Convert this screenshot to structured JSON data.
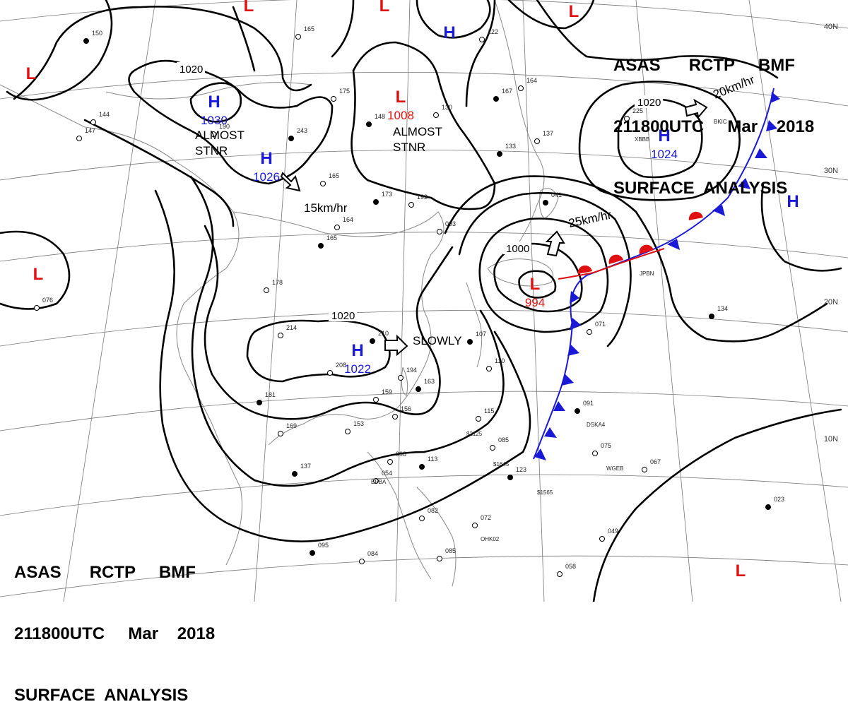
{
  "header": {
    "line1": "ASAS      RCTP     BMF",
    "line2": "211800UTC     Mar    2018",
    "line3": "SURFACE  ANALYSIS"
  },
  "lat_labels": [
    "40N",
    "30N",
    "20N",
    "10N"
  ],
  "colors": {
    "high": "#1a1ad6",
    "low": "#e01010",
    "isobar": "#000000",
    "cold_front": "#1a1ad6",
    "warm_front": "#e01010",
    "grid": "#555555"
  },
  "pressure_centers": [
    {
      "type": "H",
      "value": "1030",
      "key": "h1030"
    },
    {
      "type": "H",
      "value": "1026",
      "key": "h1026"
    },
    {
      "type": "L",
      "value": "1008",
      "key": "l1008"
    },
    {
      "type": "H",
      "value": "1024",
      "key": "h1024"
    },
    {
      "type": "H",
      "value": "1022",
      "key": "h1022"
    },
    {
      "type": "L",
      "value": "994",
      "key": "l994"
    },
    {
      "type": "H",
      "value": "",
      "key": "h-east"
    },
    {
      "type": "L",
      "value": "",
      "key": "l-nw"
    },
    {
      "type": "L",
      "value": "",
      "key": "l-w"
    },
    {
      "type": "L",
      "value": "",
      "key": "l-se"
    },
    {
      "type": "L",
      "value": "",
      "key": "l-top1"
    },
    {
      "type": "L",
      "value": "",
      "key": "l-top2"
    },
    {
      "type": "L",
      "value": "",
      "key": "l-top3"
    },
    {
      "type": "H",
      "value": "",
      "key": "h-top"
    }
  ],
  "isobar_labels": [
    "1020",
    "1020",
    "1020",
    "1000"
  ],
  "motion_labels": {
    "almost_stnr_1": "ALMOST\nSTNR",
    "almost_stnr_2": "ALMOST\nSTNR",
    "speed_15": "15km/hr",
    "speed_25": "25km/hr",
    "speed_20": "20km/hr",
    "slowly": "SLOWLY"
  },
  "station_ids": [
    "XBBB",
    "BKIC",
    "JPBN",
    "DSKA4",
    "WGEB",
    "OHK02",
    "BPBA",
    "$2125",
    "$1645",
    "$1565"
  ],
  "station_values": [
    "150",
    "165",
    "175",
    "243",
    "190",
    "165",
    "173",
    "192",
    "164",
    "165",
    "178",
    "214",
    "210",
    "208",
    "194",
    "163",
    "159",
    "156",
    "181",
    "169",
    "153",
    "137",
    "098",
    "054",
    "113",
    "082",
    "072",
    "095",
    "084",
    "085",
    "123",
    "115",
    "085",
    "107",
    "110",
    "071",
    "091",
    "075",
    "067",
    "023",
    "049",
    "058",
    "134",
    "225",
    "147",
    "167",
    "164",
    "137",
    "133",
    "122",
    "144",
    "148",
    "130",
    "093",
    "041",
    "076"
  ]
}
